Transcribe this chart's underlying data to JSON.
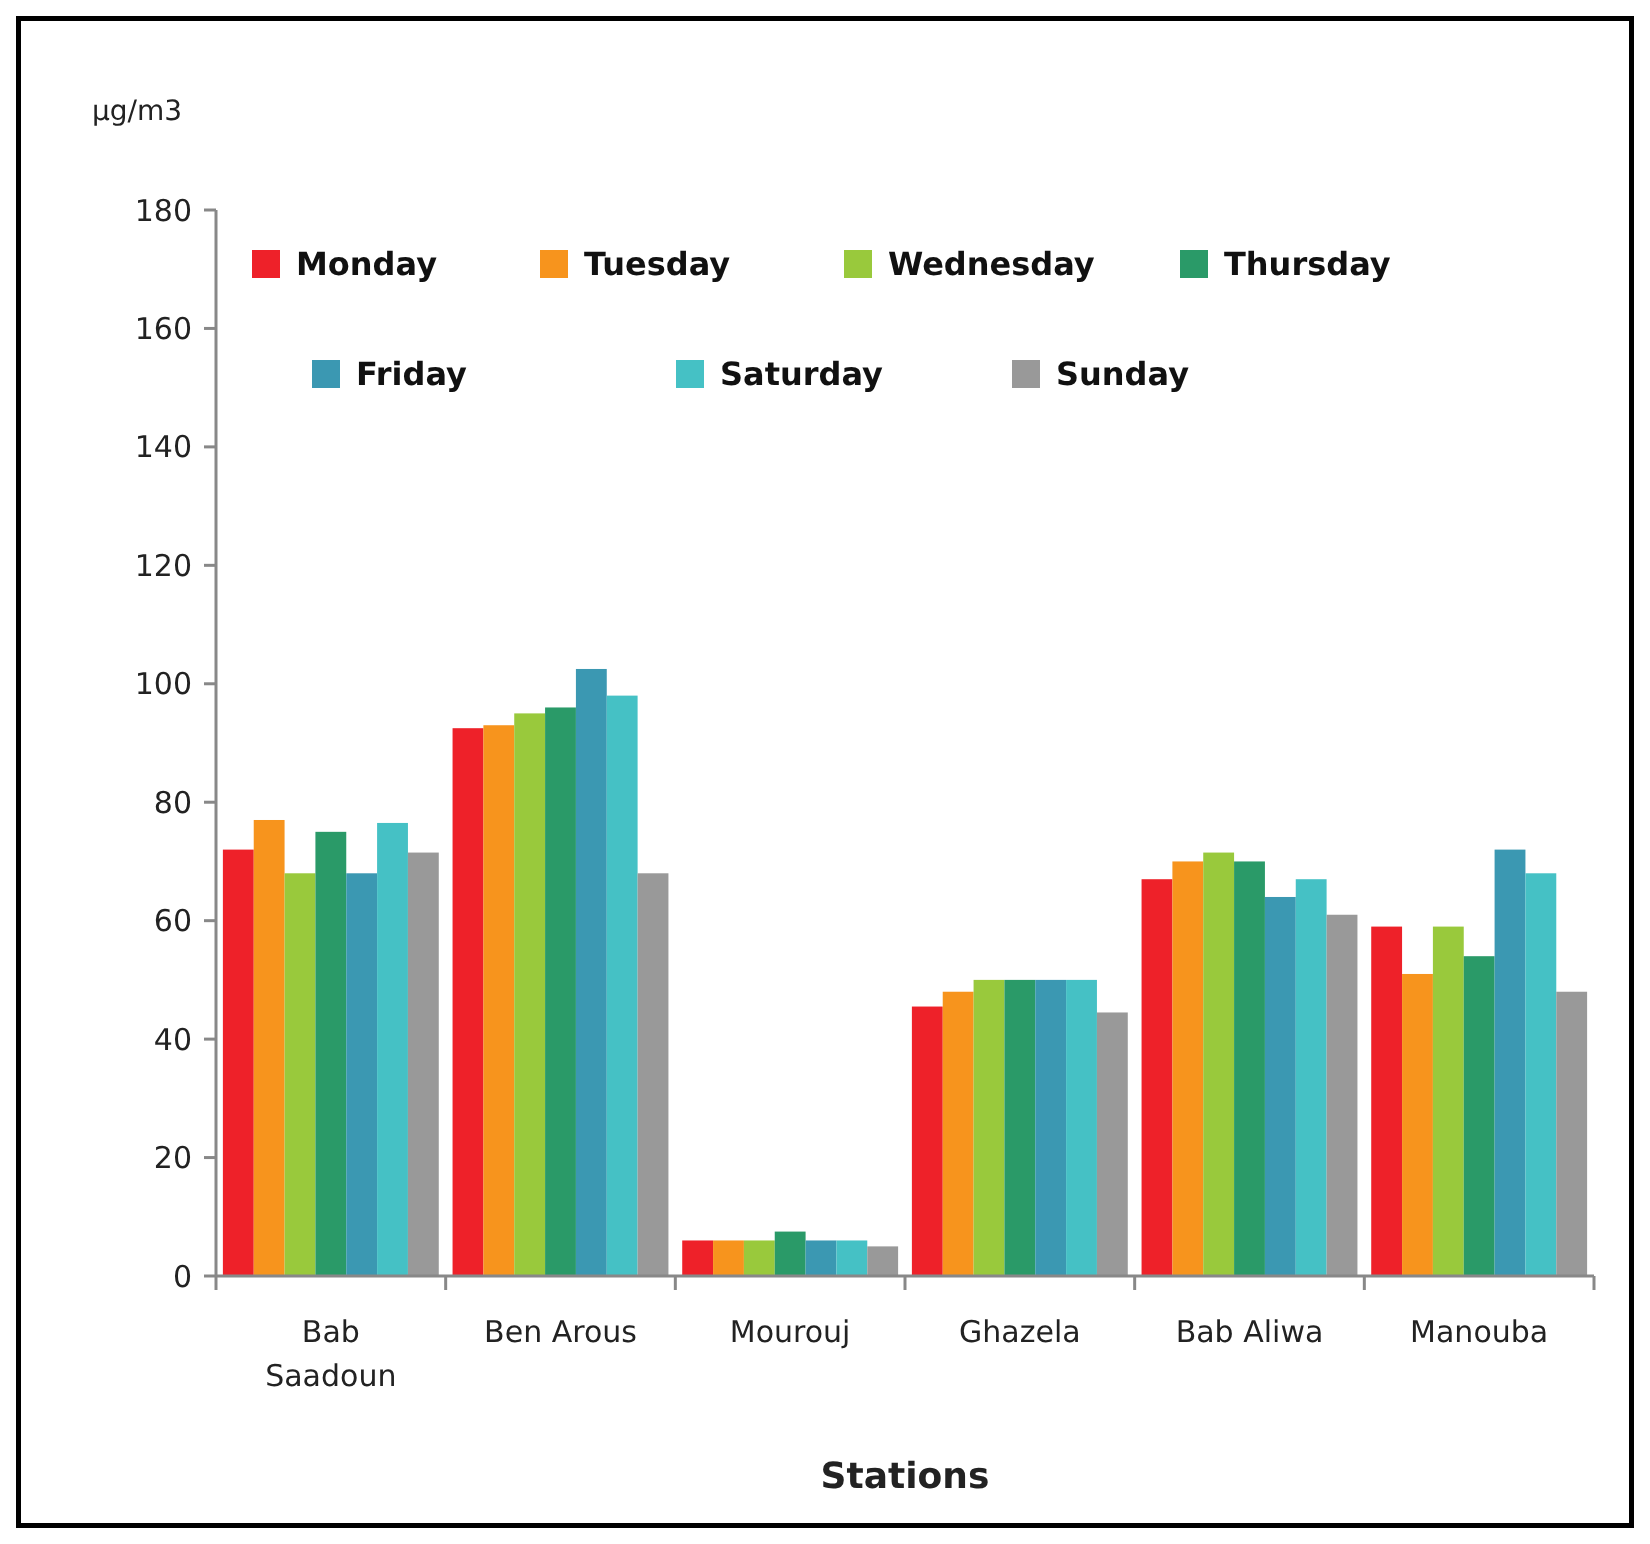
{
  "chart_data": {
    "type": "bar",
    "ylabel": "µg/m3",
    "xlabel": "Stations",
    "categories": [
      "Bab Saadoun",
      "Ben Arous",
      "Mourouj",
      "Ghazela",
      "Bab Aliwa",
      "Manouba"
    ],
    "series": [
      {
        "name": "Monday",
        "color": "#ee2129",
        "values": [
          72,
          92.5,
          6,
          45.5,
          67,
          59
        ]
      },
      {
        "name": "Tuesday",
        "color": "#f7941d",
        "values": [
          77,
          93,
          6,
          48,
          70,
          51
        ]
      },
      {
        "name": "Wednesday",
        "color": "#99c93c",
        "values": [
          68,
          95,
          6,
          50,
          71.5,
          59
        ]
      },
      {
        "name": "Thursday",
        "color": "#2a9a68",
        "values": [
          75,
          96,
          7.5,
          50,
          70,
          54
        ]
      },
      {
        "name": "Friday",
        "color": "#3b98b2",
        "values": [
          68,
          102.5,
          6,
          50,
          64,
          72
        ]
      },
      {
        "name": "Saturday",
        "color": "#45c1c5",
        "values": [
          76.5,
          98,
          6,
          50,
          67,
          68
        ]
      },
      {
        "name": "Sunday",
        "color": "#999999",
        "values": [
          71.5,
          68,
          5,
          44.5,
          61,
          48
        ]
      }
    ],
    "ylim": [
      0,
      180
    ],
    "yticks": [
      0,
      20,
      40,
      60,
      80,
      100,
      120,
      140,
      160,
      180
    ],
    "grid": false,
    "legend": "top"
  }
}
